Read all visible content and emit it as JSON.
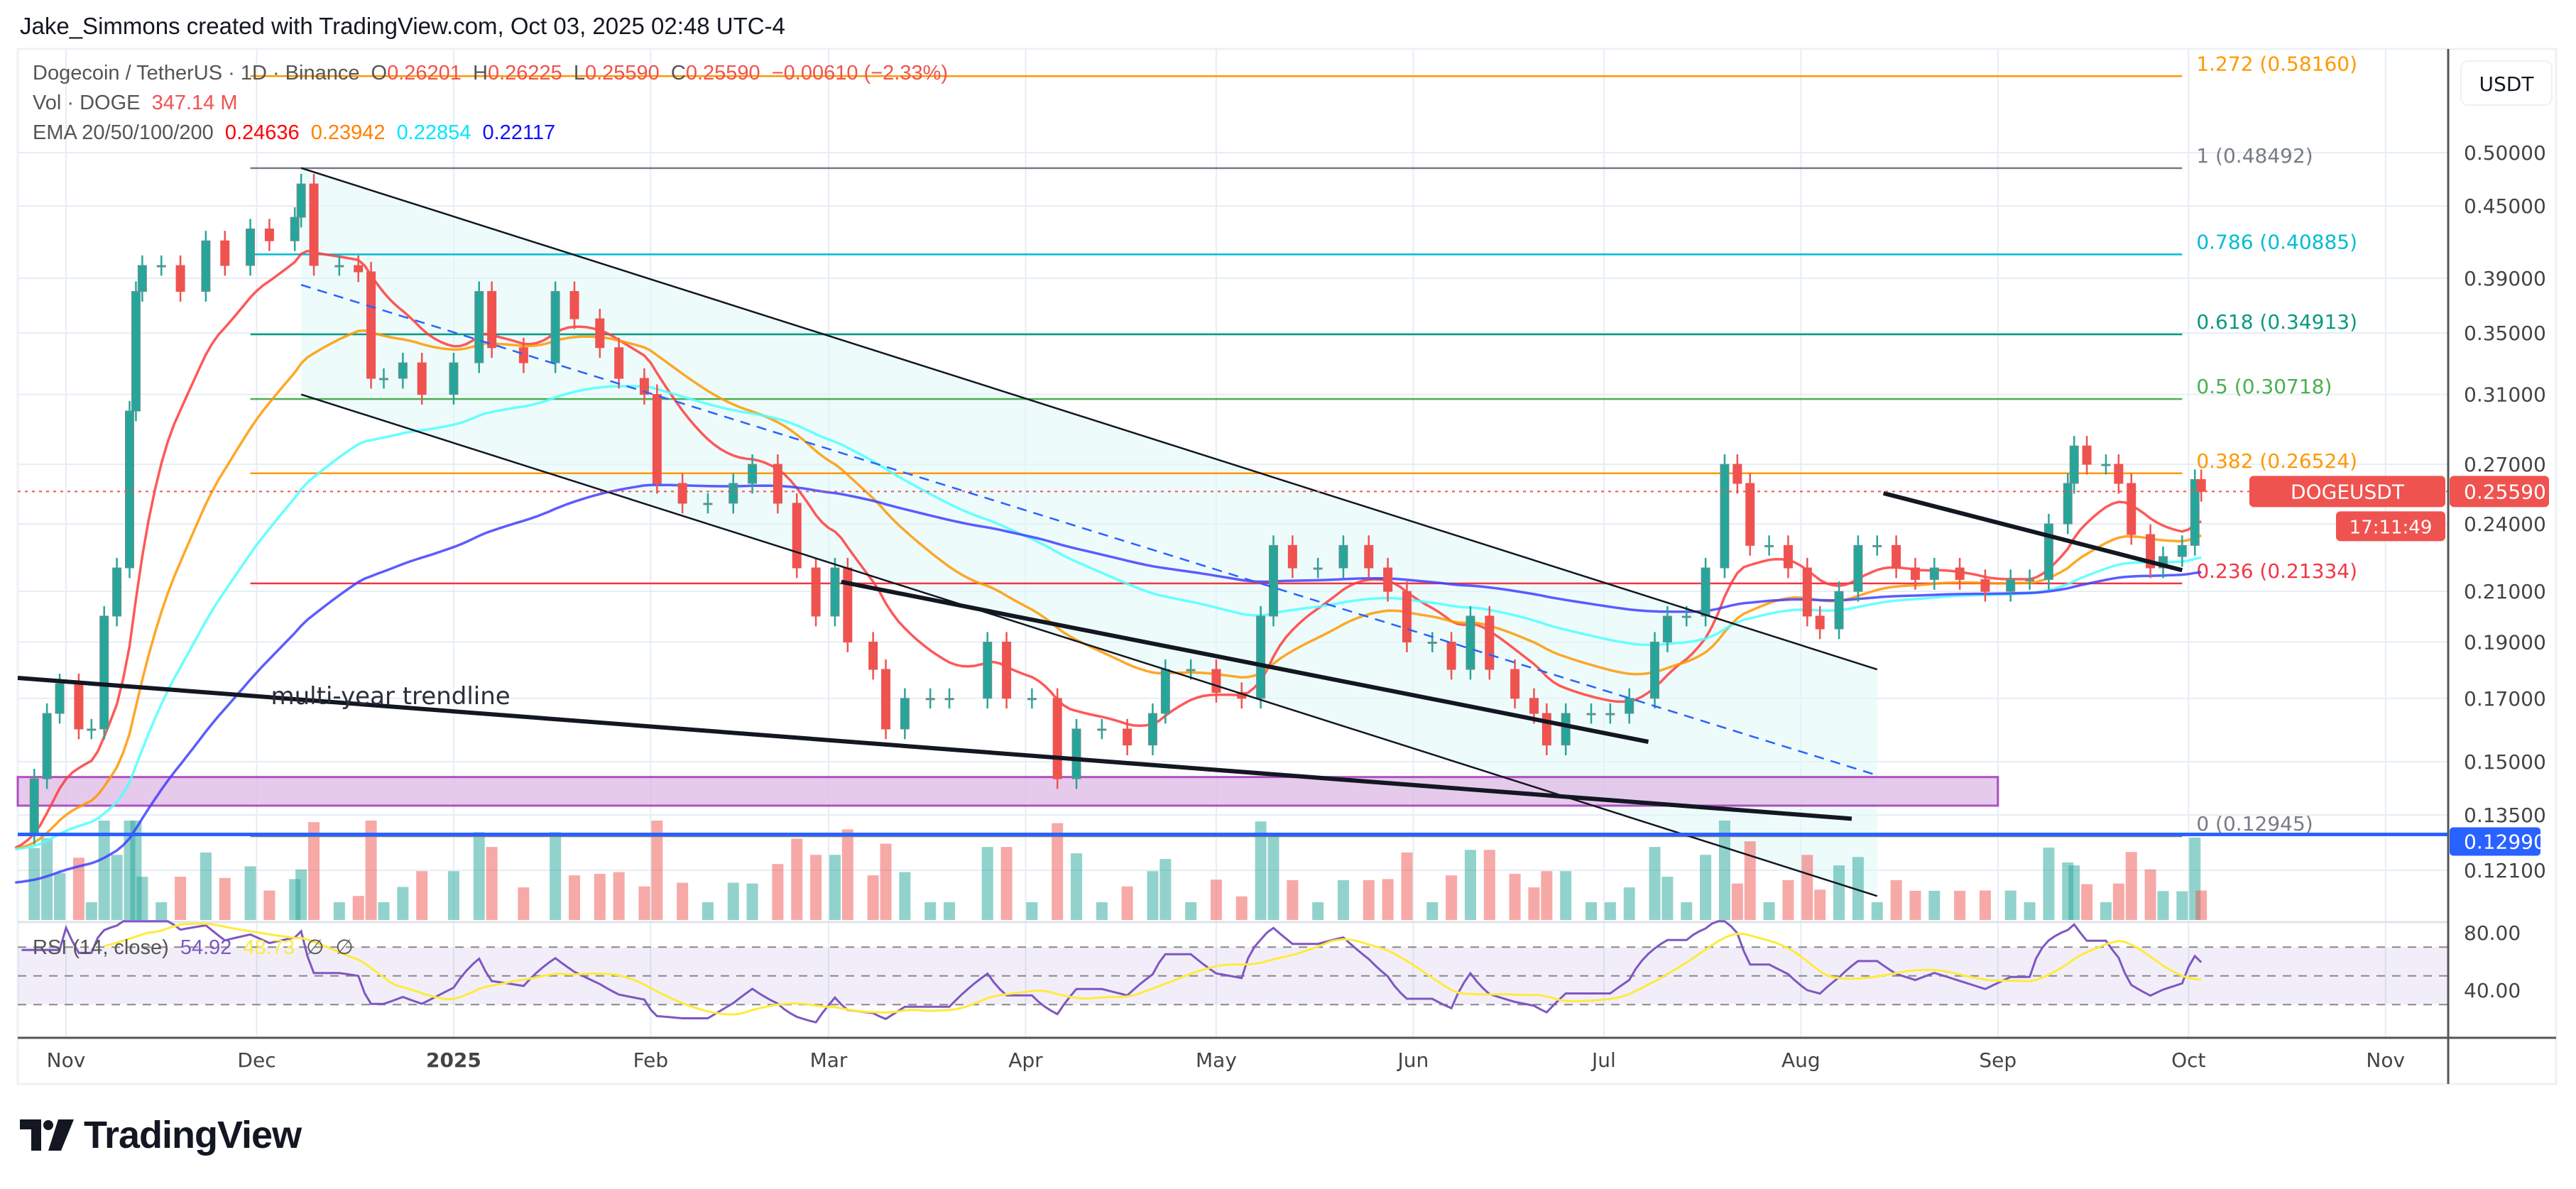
{
  "attribution": "Jake_Simmons created with TradingView.com, Oct 03, 2025 02:48 UTC-4",
  "legend": {
    "symbol": "Dogecoin / TetherUS · 1D · Binance",
    "o_label": "O",
    "open": "0.26201",
    "h_label": "H",
    "high": "0.26225",
    "l_label": "L",
    "low": "0.25590",
    "c_label": "C",
    "close": "0.25590",
    "change": "−0.00610 (−2.33%)",
    "vol_label": "Vol · DOGE",
    "vol_value": "347.14 M",
    "ema_label": "EMA 20/50/100/200",
    "ema_values": [
      "0.24636",
      "0.23942",
      "0.22854",
      "0.22117"
    ]
  },
  "rsi_legend": {
    "label": "RSI (14, close)",
    "value": "54.92",
    "ma_value": "48.73",
    "na1": "∅",
    "na2": "∅"
  },
  "price_axis": {
    "currency": "USDT",
    "ticks": [
      {
        "label": "0.50000",
        "price": 0.5
      },
      {
        "label": "0.45000",
        "price": 0.45
      },
      {
        "label": "0.39000",
        "price": 0.39
      },
      {
        "label": "0.35000",
        "price": 0.35
      },
      {
        "label": "0.31000",
        "price": 0.31
      },
      {
        "label": "0.27000",
        "price": 0.27
      },
      {
        "label": "0.24000",
        "price": 0.24
      },
      {
        "label": "0.21000",
        "price": 0.21
      },
      {
        "label": "0.19000",
        "price": 0.19
      },
      {
        "label": "0.17000",
        "price": 0.17
      },
      {
        "label": "0.15000",
        "price": 0.15
      },
      {
        "label": "0.13500",
        "price": 0.135
      },
      {
        "label": "0.12100",
        "price": 0.121
      }
    ]
  },
  "rsi_axis": {
    "ticks": [
      {
        "label": "80.00",
        "value": 80
      },
      {
        "label": "40.00",
        "value": 40
      }
    ]
  },
  "time_axis": {
    "labels": [
      {
        "text": "Nov",
        "date": "2024-11-01",
        "bold": false
      },
      {
        "text": "Dec",
        "date": "2024-12-01",
        "bold": false
      },
      {
        "text": "2025",
        "date": "2025-01-01",
        "bold": true
      },
      {
        "text": "Feb",
        "date": "2025-02-01",
        "bold": false
      },
      {
        "text": "Mar",
        "date": "2025-03-01",
        "bold": false
      },
      {
        "text": "Apr",
        "date": "2025-04-01",
        "bold": false
      },
      {
        "text": "May",
        "date": "2025-05-01",
        "bold": false
      },
      {
        "text": "Jun",
        "date": "2025-06-01",
        "bold": false
      },
      {
        "text": "Jul",
        "date": "2025-07-01",
        "bold": false
      },
      {
        "text": "Aug",
        "date": "2025-08-01",
        "bold": false
      },
      {
        "text": "Sep",
        "date": "2025-09-01",
        "bold": false
      },
      {
        "text": "Oct",
        "date": "2025-10-01",
        "bold": false
      },
      {
        "text": "Nov",
        "date": "2025-11-01",
        "bold": false
      }
    ]
  },
  "price_tag": {
    "symbol": "DOGEUSDT",
    "price": "0.25590",
    "price_value": 0.2559,
    "countdown": "17:11:49"
  },
  "line_tag": {
    "label": "0.12990",
    "price": 0.1299
  },
  "annotation": {
    "text": "multi-year trendline",
    "date": "2024-12-01",
    "price": 0.168
  },
  "logo": "TradingView",
  "colors": {
    "up": "#26a69a",
    "down": "#ef5350",
    "ema20": "#ff3b3b",
    "ema50": "#ff9800",
    "ema100": "#4dffff",
    "ema200": "#4040ff",
    "rsi": "#7e57c2",
    "rsi_ma": "#ffeb3b",
    "channel_fill": "#e0f7f7",
    "zone_fill": "#e1bee7",
    "zone_stroke": "#9c27b0",
    "support_line": "#2962ff",
    "price_tag": "#ef5350"
  },
  "chart_data": {
    "type": "candlestick",
    "scale": "log",
    "ylim": [
      0.115,
      0.6
    ],
    "ema_periods": [
      20,
      50,
      100,
      200
    ],
    "closes": [
      [
        "2024-10-24",
        0.13
      ],
      [
        "2024-10-27",
        0.145
      ],
      [
        "2024-10-29",
        0.165
      ],
      [
        "2024-10-31",
        0.175
      ],
      [
        "2024-11-03",
        0.16
      ],
      [
        "2024-11-05",
        0.16
      ],
      [
        "2024-11-07",
        0.2
      ],
      [
        "2024-11-09",
        0.22
      ],
      [
        "2024-11-11",
        0.3
      ],
      [
        "2024-11-12",
        0.38
      ],
      [
        "2024-11-13",
        0.4
      ],
      [
        "2024-11-16",
        0.4
      ],
      [
        "2024-11-19",
        0.38
      ],
      [
        "2024-11-23",
        0.42
      ],
      [
        "2024-11-26",
        0.4
      ],
      [
        "2024-11-30",
        0.43
      ],
      [
        "2024-12-03",
        0.42
      ],
      [
        "2024-12-07",
        0.44
      ],
      [
        "2024-12-08",
        0.47
      ],
      [
        "2024-12-10",
        0.4
      ],
      [
        "2024-12-14",
        0.4
      ],
      [
        "2024-12-17",
        0.395
      ],
      [
        "2024-12-19",
        0.32
      ],
      [
        "2024-12-21",
        0.32
      ],
      [
        "2024-12-24",
        0.33
      ],
      [
        "2024-12-27",
        0.31
      ],
      [
        "2025-01-01",
        0.33
      ],
      [
        "2025-01-05",
        0.38
      ],
      [
        "2025-01-07",
        0.34
      ],
      [
        "2025-01-12",
        0.33
      ],
      [
        "2025-01-17",
        0.38
      ],
      [
        "2025-01-20",
        0.36
      ],
      [
        "2025-01-24",
        0.34
      ],
      [
        "2025-01-27",
        0.32
      ],
      [
        "2025-01-31",
        0.31
      ],
      [
        "2025-02-02",
        0.26
      ],
      [
        "2025-02-06",
        0.25
      ],
      [
        "2025-02-10",
        0.25
      ],
      [
        "2025-02-14",
        0.26
      ],
      [
        "2025-02-17",
        0.27
      ],
      [
        "2025-02-21",
        0.25
      ],
      [
        "2025-02-24",
        0.22
      ],
      [
        "2025-02-27",
        0.2
      ],
      [
        "2025-03-02",
        0.22
      ],
      [
        "2025-03-04",
        0.19
      ],
      [
        "2025-03-08",
        0.18
      ],
      [
        "2025-03-10",
        0.16
      ],
      [
        "2025-03-13",
        0.17
      ],
      [
        "2025-03-17",
        0.17
      ],
      [
        "2025-03-20",
        0.17
      ],
      [
        "2025-03-26",
        0.19
      ],
      [
        "2025-03-29",
        0.17
      ],
      [
        "2025-04-02",
        0.17
      ],
      [
        "2025-04-06",
        0.145
      ],
      [
        "2025-04-09",
        0.16
      ],
      [
        "2025-04-13",
        0.16
      ],
      [
        "2025-04-17",
        0.155
      ],
      [
        "2025-04-21",
        0.165
      ],
      [
        "2025-04-23",
        0.18
      ],
      [
        "2025-04-27",
        0.18
      ],
      [
        "2025-05-01",
        0.172
      ],
      [
        "2025-05-05",
        0.17
      ],
      [
        "2025-05-08",
        0.2
      ],
      [
        "2025-05-10",
        0.23
      ],
      [
        "2025-05-13",
        0.22
      ],
      [
        "2025-05-17",
        0.22
      ],
      [
        "2025-05-21",
        0.23
      ],
      [
        "2025-05-25",
        0.22
      ],
      [
        "2025-05-28",
        0.21
      ],
      [
        "2025-05-31",
        0.19
      ],
      [
        "2025-06-04",
        0.19
      ],
      [
        "2025-06-07",
        0.18
      ],
      [
        "2025-06-10",
        0.2
      ],
      [
        "2025-06-13",
        0.18
      ],
      [
        "2025-06-17",
        0.17
      ],
      [
        "2025-06-20",
        0.165
      ],
      [
        "2025-06-22",
        0.155
      ],
      [
        "2025-06-25",
        0.165
      ],
      [
        "2025-06-29",
        0.165
      ],
      [
        "2025-07-02",
        0.165
      ],
      [
        "2025-07-05",
        0.17
      ],
      [
        "2025-07-09",
        0.19
      ],
      [
        "2025-07-11",
        0.2
      ],
      [
        "2025-07-14",
        0.2
      ],
      [
        "2025-07-17",
        0.22
      ],
      [
        "2025-07-20",
        0.27
      ],
      [
        "2025-07-22",
        0.26
      ],
      [
        "2025-07-24",
        0.23
      ],
      [
        "2025-07-27",
        0.23
      ],
      [
        "2025-07-30",
        0.22
      ],
      [
        "2025-08-02",
        0.2
      ],
      [
        "2025-08-04",
        0.195
      ],
      [
        "2025-08-07",
        0.21
      ],
      [
        "2025-08-10",
        0.23
      ],
      [
        "2025-08-13",
        0.23
      ],
      [
        "2025-08-16",
        0.22
      ],
      [
        "2025-08-19",
        0.215
      ],
      [
        "2025-08-22",
        0.22
      ],
      [
        "2025-08-26",
        0.215
      ],
      [
        "2025-08-30",
        0.21
      ],
      [
        "2025-09-03",
        0.215
      ],
      [
        "2025-09-06",
        0.215
      ],
      [
        "2025-09-09",
        0.24
      ],
      [
        "2025-09-12",
        0.26
      ],
      [
        "2025-09-13",
        0.28
      ],
      [
        "2025-09-15",
        0.27
      ],
      [
        "2025-09-18",
        0.27
      ],
      [
        "2025-09-20",
        0.26
      ],
      [
        "2025-09-22",
        0.235
      ],
      [
        "2025-09-25",
        0.22
      ],
      [
        "2025-09-27",
        0.225
      ],
      [
        "2025-09-30",
        0.23
      ],
      [
        "2025-10-02",
        0.262
      ],
      [
        "2025-10-03",
        0.2559
      ]
    ],
    "fib_levels": [
      {
        "label": "1.272 (0.58160)",
        "price": 0.5816,
        "color": "#ff9800"
      },
      {
        "label": "1 (0.48492)",
        "price": 0.48492,
        "color": "#787b86"
      },
      {
        "label": "0.786 (0.40885)",
        "price": 0.40885,
        "color": "#00bcd4"
      },
      {
        "label": "0.618 (0.34913)",
        "price": 0.34913,
        "color": "#089981"
      },
      {
        "label": "0.5 (0.30718)",
        "price": 0.30718,
        "color": "#4caf50"
      },
      {
        "label": "0.382 (0.26524)",
        "price": 0.26524,
        "color": "#ff9800"
      },
      {
        "label": "0.236 (0.21334)",
        "price": 0.21334,
        "color": "#f23645"
      },
      {
        "label": "0 (0.12945)",
        "price": 0.12945,
        "color": "#787b86"
      }
    ],
    "fib_range": [
      "2024-11-30",
      "2025-09-30"
    ],
    "drawings": {
      "channel_upper": [
        [
          "2024-12-08",
          0.485
        ],
        [
          "2025-08-13",
          0.18
        ]
      ],
      "channel_lower": [
        [
          "2024-12-08",
          0.31
        ],
        [
          "2025-08-13",
          0.115
        ]
      ],
      "channel_mid": [
        [
          "2024-12-08",
          0.385
        ],
        [
          "2025-08-13",
          0.146
        ]
      ],
      "multi_year_trendline": [
        [
          "2024-10-24",
          0.177
        ],
        [
          "2025-08-09",
          0.134
        ]
      ],
      "trendline_2": [
        [
          "2025-03-03",
          0.214
        ],
        [
          "2025-07-08",
          0.156
        ]
      ],
      "trendline_3": [
        [
          "2025-08-14",
          0.255
        ],
        [
          "2025-09-30",
          0.219
        ]
      ],
      "demand_zone": {
        "from": "2024-10-24",
        "to": "2025-09-01",
        "low": 0.1375,
        "high": 0.1455
      }
    }
  }
}
